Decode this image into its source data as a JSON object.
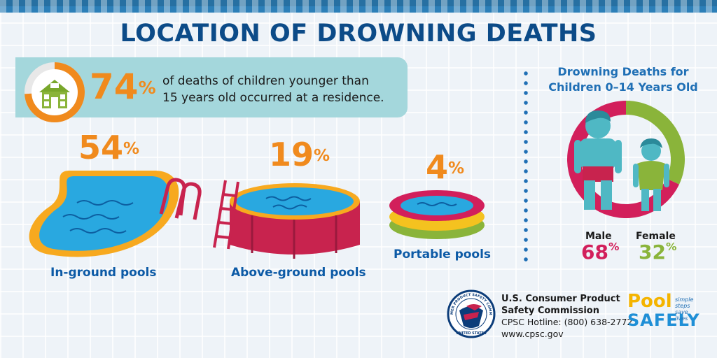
{
  "title": "LOCATION OF DROWNING DEATHS",
  "residence_stat": {
    "value": "74",
    "percent_sign": "%",
    "text_line1": "of deaths of children younger than",
    "text_line2": "15 years old occurred at a residence.",
    "icon": "house-icon"
  },
  "chart_data": [
    {
      "type": "bar",
      "categories": [
        "In-ground pools",
        "Above-ground pools",
        "Portable pools"
      ],
      "values": [
        54,
        19,
        4
      ],
      "unit": "%"
    },
    {
      "type": "pie",
      "title": "Drowning Deaths for Children 0–14 Years Old",
      "categories": [
        "Male",
        "Female"
      ],
      "values": [
        68,
        32
      ],
      "unit": "%",
      "colors": [
        "#d21f5b",
        "#8ab43a"
      ]
    }
  ],
  "pools": [
    {
      "label": "In-ground pools",
      "value": "54",
      "sign": "%"
    },
    {
      "label": "Above-ground pools",
      "value": "19",
      "sign": "%"
    },
    {
      "label": "Portable pools",
      "value": "4",
      "sign": "%"
    }
  ],
  "gender": {
    "title_line1": "Drowning Deaths for",
    "title_line2": "Children 0–14 Years Old",
    "male_label": "Male",
    "male_value": "68",
    "female_label": "Female",
    "female_value": "32",
    "sign": "%"
  },
  "footer": {
    "org_line1": "U.S. Consumer Product",
    "org_line2": "Safety Commission",
    "hotline": "CPSC  Hotline: (800) 638-2772",
    "website": "www.cpsc.gov",
    "seal_top_text": "CONSUMER PRODUCT SAFETY COMMISSION",
    "seal_bottom_text": "UNITED STATES",
    "brand_pool": "Pool",
    "brand_safely": "SAFELY",
    "brand_tag1": "simple steps",
    "brand_tag2": "save lives"
  },
  "colors": {
    "title": "#0c4b88",
    "accent_orange": "#f08a1d",
    "water": "#29a8e0",
    "male": "#d21f5b",
    "female": "#8ab43a",
    "figure": "#4fb8c4"
  }
}
